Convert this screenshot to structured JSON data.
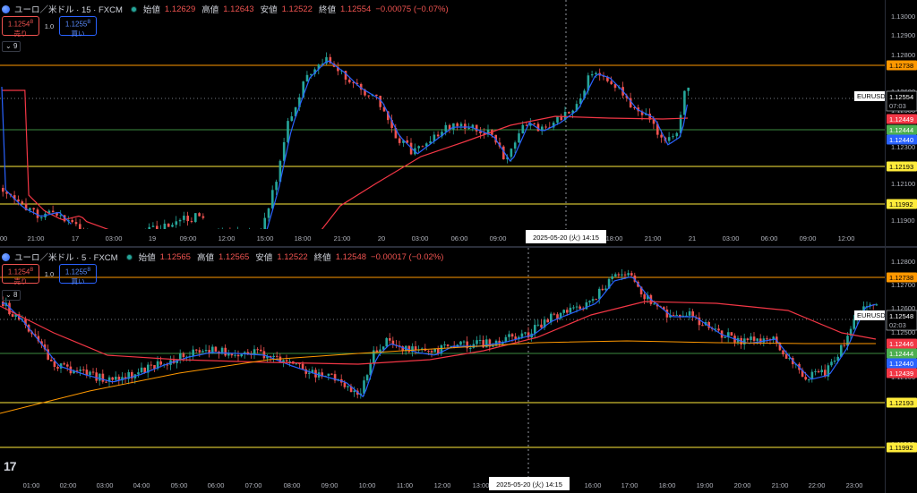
{
  "panes": [
    {
      "symbol": "ユーロ／米ドル · 15 · FXCM",
      "ohlc": [
        {
          "label": "始値",
          "value": "1.12629"
        },
        {
          "label": "高値",
          "value": "1.12643"
        },
        {
          "label": "安値",
          "value": "1.12522"
        },
        {
          "label": "終値",
          "value": "1.12554"
        }
      ],
      "change": "−0.00075 (−0.07%)",
      "sell_price": "1.1254",
      "sell_sup": "8",
      "sell_label": "売り",
      "qty": "1.0",
      "buy_price": "1.1255",
      "buy_sup": "8",
      "buy_label": "買い",
      "indicator_count": "9",
      "price_ticks": [
        "1.13000",
        "1.12900",
        "1.12800",
        "1.12600",
        "1.12500",
        "1.12300",
        "1.12100",
        "1.11900"
      ],
      "time_ticks": [
        "00",
        "21:00",
        "17",
        "03:00",
        "19",
        "09:00",
        "12:00",
        "15:00",
        "18:00",
        "21:00",
        "20",
        "03:00",
        "06:00",
        "09:00",
        "18:00",
        "21:00",
        "21",
        "03:00",
        "06:00",
        "09:00",
        "12:00"
      ],
      "crosshair_time": "2025-05-20 (火)   14:15",
      "current_symbol": "EURUSD",
      "current_price": "1.12554",
      "countdown": "07:03",
      "levels": [
        "1.12738",
        "1.12449",
        "1.12444",
        "1.12440",
        "1.12193",
        "1.11992"
      ]
    },
    {
      "symbol": "ユーロ／米ドル · 5 · FXCM",
      "ohlc": [
        {
          "label": "始値",
          "value": "1.12565"
        },
        {
          "label": "高値",
          "value": "1.12565"
        },
        {
          "label": "安値",
          "value": "1.12522"
        },
        {
          "label": "終値",
          "value": "1.12548"
        }
      ],
      "change": "−0.00017 (−0.02%)",
      "sell_price": "1.1254",
      "sell_sup": "8",
      "sell_label": "売り",
      "qty": "1.0",
      "buy_price": "1.1255",
      "buy_sup": "8",
      "buy_label": "買い",
      "indicator_count": "8",
      "price_ticks": [
        "1.12800",
        "1.12700",
        "1.12600",
        "1.12500",
        "1.12300",
        "1.12100",
        "1.11900"
      ],
      "time_ticks": [
        "01:00",
        "02:00",
        "03:00",
        "04:00",
        "05:00",
        "06:00",
        "07:00",
        "08:00",
        "09:00",
        "10:00",
        "11:00",
        "12:00",
        "13:00",
        "16:00",
        "17:00",
        "18:00",
        "19:00",
        "20:00",
        "21:00",
        "22:00",
        "23:00"
      ],
      "crosshair_time": "2025-05-20 (火)   14:15",
      "current_symbol": "EURUSD",
      "current_price": "1.12548",
      "countdown": "02:03",
      "levels": [
        "1.12738",
        "1.12446",
        "1.12444",
        "1.12440",
        "1.12439",
        "1.12193",
        "1.11992"
      ]
    }
  ],
  "colors": {
    "bg": "#000000",
    "up": "#26a69a",
    "down": "#ef5350",
    "sma_fast": "#2962ff",
    "sma_slow": "#f23645",
    "level_orange": "#ff9800",
    "level_yellow": "#ffeb3b",
    "level_green": "#4caf50"
  }
}
